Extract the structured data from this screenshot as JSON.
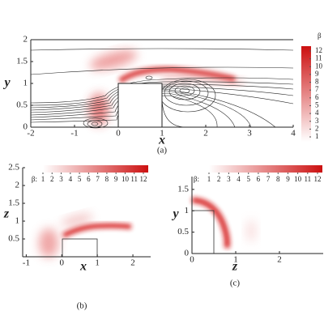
{
  "chart_data": [
    {
      "type": "contour",
      "caption": "(a)",
      "x_label": "x",
      "y_label": "y",
      "xlim": [
        -2,
        4
      ],
      "ylim": [
        0,
        2
      ],
      "xticks": [
        -2,
        -1,
        0,
        1,
        2,
        3,
        4
      ],
      "yticks": [
        0,
        0.5,
        1,
        1.5,
        2
      ],
      "colorbar": {
        "title": "β",
        "orientation": "vertical",
        "lim": [
          1,
          12
        ],
        "ticks": [
          1,
          2,
          3,
          4,
          5,
          6,
          7,
          8,
          9,
          10,
          11,
          12
        ],
        "colors": [
          "#ffffff",
          "#cc1010"
        ]
      }
    },
    {
      "type": "contour",
      "caption": "(b)",
      "x_label": "x",
      "y_label": "z",
      "xlim": [
        -1.1,
        2.5
      ],
      "ylim": [
        0,
        2.5
      ],
      "xticks": [
        -1,
        0,
        1,
        2
      ],
      "yticks": [
        0.5,
        1,
        1.5,
        2,
        2.5
      ],
      "colorbar": {
        "title": "β:",
        "orientation": "horizontal",
        "lim": [
          1,
          12
        ],
        "ticks": [
          1,
          2,
          3,
          4,
          5,
          6,
          7,
          8,
          9,
          10,
          11,
          12
        ],
        "colors": [
          "#ffffff",
          "#cc1010"
        ]
      }
    },
    {
      "type": "contour",
      "caption": "(c)",
      "x_label": "z",
      "y_label": "y",
      "xlim": [
        0,
        3
      ],
      "ylim": [
        0,
        1.8
      ],
      "xticks": [
        0,
        1,
        2
      ],
      "yticks": [
        0,
        0.5,
        1,
        1.5
      ],
      "colorbar": {
        "title": "β:",
        "orientation": "horizontal",
        "lim": [
          1,
          12
        ],
        "ticks": [
          1,
          2,
          3,
          4,
          5,
          6,
          7,
          8,
          9,
          10,
          11,
          12
        ],
        "colors": [
          "#ffffff",
          "#cc1010"
        ]
      }
    }
  ]
}
